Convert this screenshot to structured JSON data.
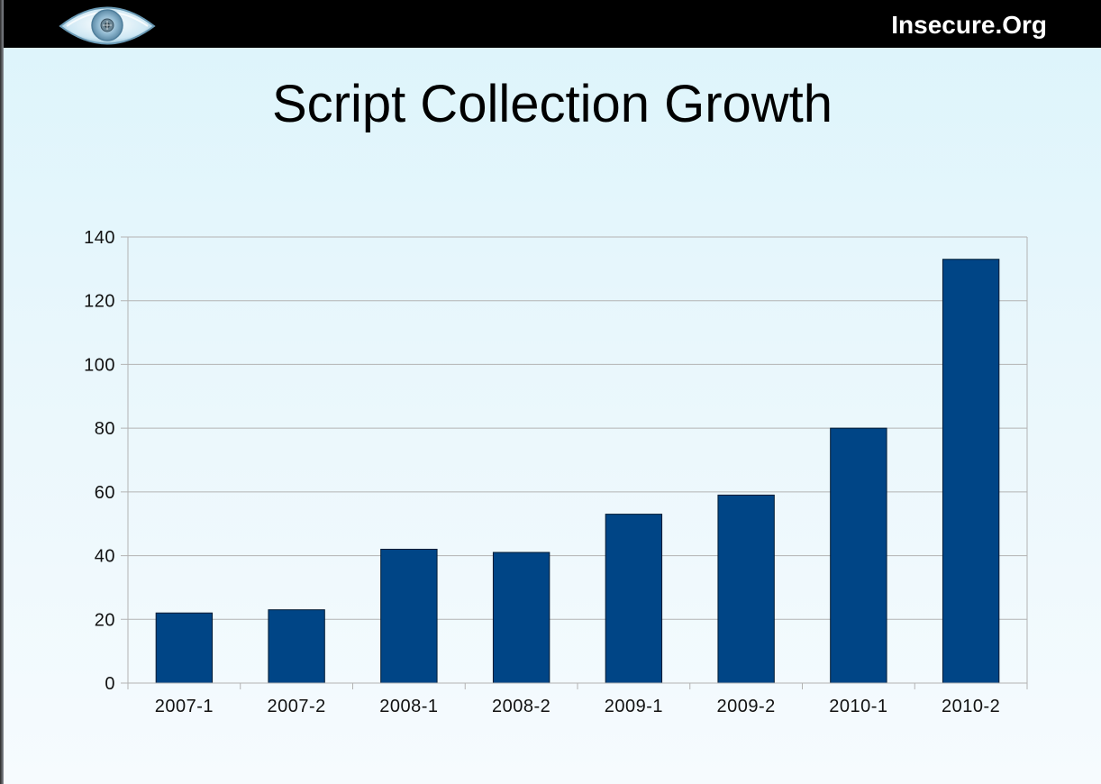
{
  "header": {
    "brand": "Insecure.Org",
    "logo_icon": "eye-logo-icon"
  },
  "slide": {
    "title": "Script Collection Growth"
  },
  "colors": {
    "bar": "#004586",
    "bar_stroke": "#001a33",
    "grid": "#b3b3b3",
    "top_bar": "#000000"
  },
  "chart_data": {
    "type": "bar",
    "title": "Script Collection Growth",
    "categories": [
      "2007-1",
      "2007-2",
      "2008-1",
      "2008-2",
      "2009-1",
      "2009-2",
      "2010-1",
      "2010-2"
    ],
    "values": [
      22,
      23,
      42,
      41,
      53,
      59,
      80,
      133
    ],
    "xlabel": "",
    "ylabel": "",
    "ylim": [
      0,
      140
    ],
    "yticks": [
      0,
      20,
      40,
      60,
      80,
      100,
      120,
      140
    ],
    "grid": true,
    "legend": "none"
  }
}
